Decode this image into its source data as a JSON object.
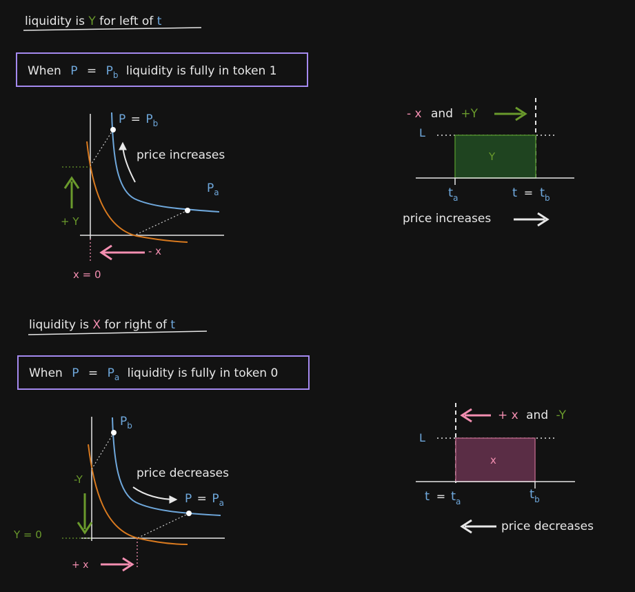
{
  "colors": {
    "background": "#121212",
    "text": "#e8e8e8",
    "blue": "#6fa8dc",
    "green": "#6a9a2c",
    "pink": "#f48fb1",
    "orange": "#d97a1f",
    "purple_border": "#a58af0",
    "green_fill": "#1f4420",
    "maroon_fill": "#5a2d45"
  },
  "top": {
    "heading": {
      "pre": "liquidity is",
      "token": "Y",
      "mid": "for left of",
      "t": "t"
    },
    "box": {
      "when": "When",
      "P": "P",
      "eq": "=",
      "Pb": "P",
      "sub": "b",
      "rest": "liquidity is fully in token 1"
    },
    "chart": {
      "p_eq_pb": {
        "P": "P",
        "eq": "=",
        "Pb": "P",
        "sub": "b"
      },
      "price_label": "price increases",
      "pa": {
        "P": "P",
        "sub": "a"
      },
      "plus_y": "+ Y",
      "minus_x": "- x",
      "x_eq_0": "x  =  0"
    },
    "range": {
      "minus_x": "- x",
      "and": "and",
      "plus_y": "+Y",
      "L": "L",
      "fill_label": "Y",
      "ta": {
        "t": "t",
        "sub": "a"
      },
      "t_eq_tb": {
        "t": "t",
        "eq": "=",
        "tb": "t",
        "sub": "b"
      },
      "price_label": "price increases"
    }
  },
  "bottom": {
    "heading": {
      "pre": "liquidity is",
      "token": "X",
      "mid": "for right of",
      "t": "t"
    },
    "box": {
      "when": "When",
      "P": "P",
      "eq": "=",
      "Pa": "P",
      "sub": "a",
      "rest": "liquidity is fully in token 0"
    },
    "chart": {
      "pb": {
        "P": "P",
        "sub": "b"
      },
      "price_label": "price decreases",
      "p_eq_pa": {
        "P": "P",
        "eq": "=",
        "Pa": "P",
        "sub": "a"
      },
      "minus_y": "-Y",
      "y_eq_0": "Y  =  0",
      "plus_x": "+ x"
    },
    "range": {
      "plus_x": "+ x",
      "and": "and",
      "minus_y": "-Y",
      "L": "L",
      "fill_label": "x",
      "t_eq_ta": {
        "t": "t",
        "eq": "=",
        "ta": "t",
        "sub": "a"
      },
      "tb": {
        "t": "t",
        "sub": "b"
      },
      "price_label": "price decreases"
    }
  }
}
